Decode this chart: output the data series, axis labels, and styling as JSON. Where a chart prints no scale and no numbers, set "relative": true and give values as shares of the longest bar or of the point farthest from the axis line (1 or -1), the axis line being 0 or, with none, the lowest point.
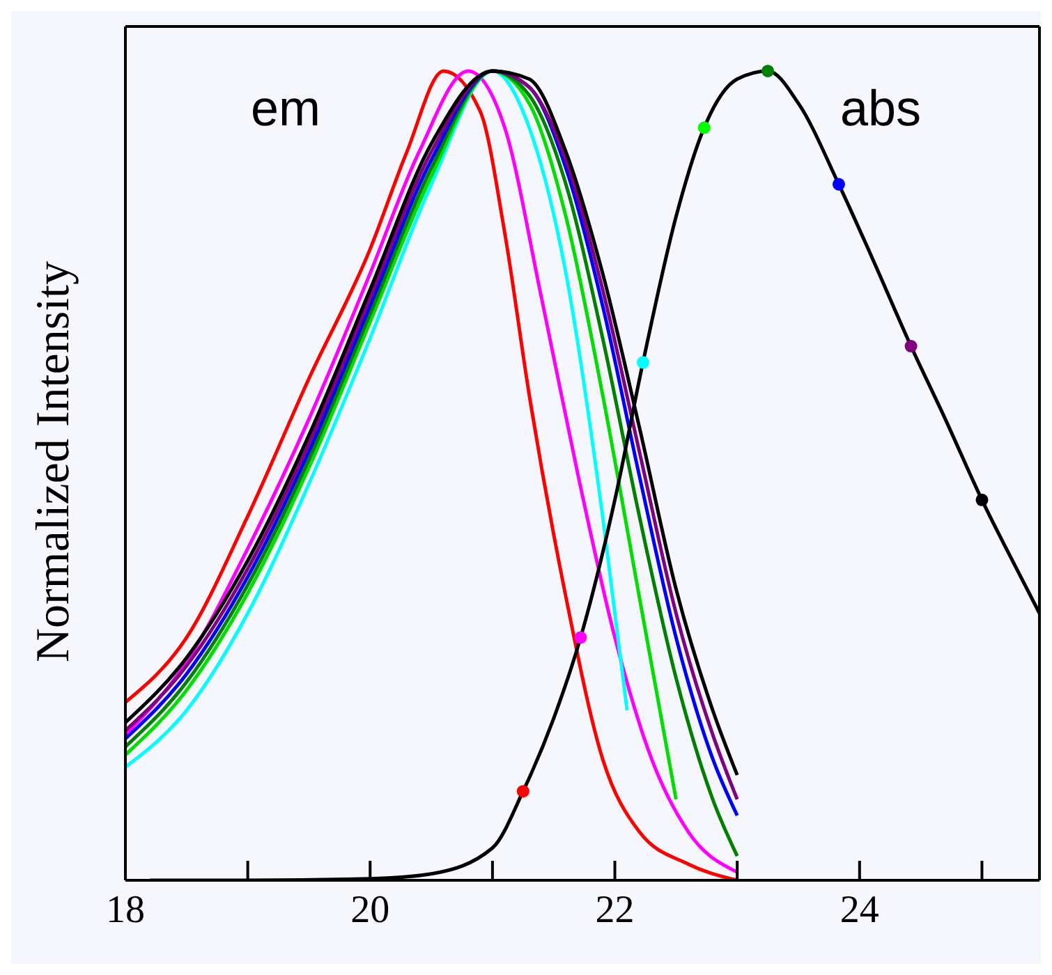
{
  "chart_data": {
    "type": "line",
    "relative": true,
    "ylabel": "Normalized Intensity",
    "xlim": [
      18,
      25.47
    ],
    "xticks": [
      18,
      {
        "value": 19,
        "label": null
      },
      20,
      {
        "value": 21,
        "label": null
      },
      22,
      {
        "value": 23,
        "label": null
      },
      24,
      {
        "value": 25,
        "label": null
      }
    ],
    "grid": false,
    "marker": "none",
    "line_style": "solid",
    "annotations": [
      "em",
      "abs"
    ],
    "series": [
      {
        "color": "#ff0000",
        "x": [
          18,
          18.5,
          19,
          19.5,
          20,
          20.3,
          20.6,
          20.9,
          21.1,
          21.3,
          21.6,
          21.9,
          22.2,
          22.6,
          23
        ],
        "values": [
          0.22,
          0.3,
          0.45,
          0.62,
          0.78,
          0.9,
          1.0,
          0.95,
          0.8,
          0.6,
          0.35,
          0.15,
          0.06,
          0.02,
          0.0
        ]
      },
      {
        "color": "#ff00ff",
        "x": [
          18,
          18.5,
          19,
          19.5,
          20,
          20.4,
          20.8,
          21.1,
          21.4,
          21.7,
          22,
          22.3,
          22.6,
          23
        ],
        "values": [
          0.18,
          0.27,
          0.41,
          0.57,
          0.75,
          0.9,
          1.0,
          0.93,
          0.72,
          0.5,
          0.3,
          0.15,
          0.06,
          0.01
        ]
      },
      {
        "color": "#00ffff",
        "x": [
          18,
          18.5,
          19,
          19.5,
          20,
          20.5,
          21,
          21.3,
          21.6,
          21.9,
          22.1
        ],
        "values": [
          0.14,
          0.21,
          0.33,
          0.49,
          0.67,
          0.86,
          1.0,
          0.93,
          0.75,
          0.45,
          0.21
        ]
      },
      {
        "color": "#00dd00",
        "x": [
          18,
          18.5,
          19,
          19.5,
          20,
          20.5,
          21,
          21.3,
          21.6,
          21.9,
          22.2,
          22.5
        ],
        "values": [
          0.155,
          0.235,
          0.355,
          0.51,
          0.69,
          0.87,
          1.0,
          0.96,
          0.82,
          0.6,
          0.35,
          0.1
        ]
      },
      {
        "color": "#008000",
        "x": [
          18,
          18.5,
          19,
          19.5,
          20,
          20.5,
          21,
          21.3,
          21.6,
          21.9,
          22.2,
          22.5,
          22.8,
          23
        ],
        "values": [
          0.165,
          0.245,
          0.365,
          0.52,
          0.7,
          0.88,
          1.0,
          0.97,
          0.86,
          0.67,
          0.45,
          0.25,
          0.1,
          0.03
        ]
      },
      {
        "color": "#0000ff",
        "x": [
          18,
          18.5,
          19,
          19.5,
          20,
          20.5,
          21,
          21.3,
          21.6,
          21.9,
          22.2,
          22.5,
          22.8,
          23
        ],
        "values": [
          0.175,
          0.255,
          0.375,
          0.53,
          0.71,
          0.89,
          1.0,
          0.98,
          0.88,
          0.71,
          0.5,
          0.3,
          0.15,
          0.08
        ]
      },
      {
        "color": "#800080",
        "x": [
          18,
          18.5,
          19,
          19.5,
          20,
          20.5,
          21,
          21.3,
          21.6,
          21.9,
          22.2,
          22.5,
          22.8,
          23
        ],
        "values": [
          0.185,
          0.265,
          0.385,
          0.54,
          0.72,
          0.9,
          1.0,
          0.98,
          0.89,
          0.73,
          0.53,
          0.33,
          0.18,
          0.1
        ]
      },
      {
        "color": "#000000",
        "x": [
          18,
          18.5,
          19,
          19.5,
          20,
          20.5,
          21,
          21.3,
          21.6,
          21.9,
          22.2,
          22.5,
          22.8,
          23
        ],
        "values": [
          0.195,
          0.275,
          0.395,
          0.55,
          0.73,
          0.91,
          1.0,
          0.99,
          0.9,
          0.75,
          0.56,
          0.36,
          0.21,
          0.13
        ]
      },
      {
        "color": "#000000",
        "x": [
          18.2,
          19,
          20,
          20.5,
          21,
          21.25,
          21.5,
          21.72,
          22,
          22.23,
          22.5,
          22.73,
          23,
          23.25,
          23.5,
          23.83,
          24.1,
          24.42,
          24.7,
          25,
          25.3,
          25.47
        ],
        "values": [
          0,
          0,
          0.002,
          0.008,
          0.04,
          0.11,
          0.2,
          0.3,
          0.47,
          0.64,
          0.82,
          0.93,
          0.99,
          1.0,
          0.96,
          0.86,
          0.77,
          0.66,
          0.57,
          0.47,
          0.38,
          0.33
        ]
      },
      {
        "type": "scatter",
        "marker": "circle",
        "x": [
          21.25,
          21.72,
          22.23,
          22.73,
          23.25,
          23.83,
          24.42,
          25.0
        ],
        "values": [
          0.11,
          0.3,
          0.64,
          0.93,
          1.0,
          0.86,
          0.66,
          0.47
        ],
        "colors": [
          "#ff0000",
          "#ff00ff",
          "#00ffff",
          "#00ff00",
          "#008000",
          "#0000ff",
          "#800080",
          "#000000"
        ]
      }
    ]
  }
}
